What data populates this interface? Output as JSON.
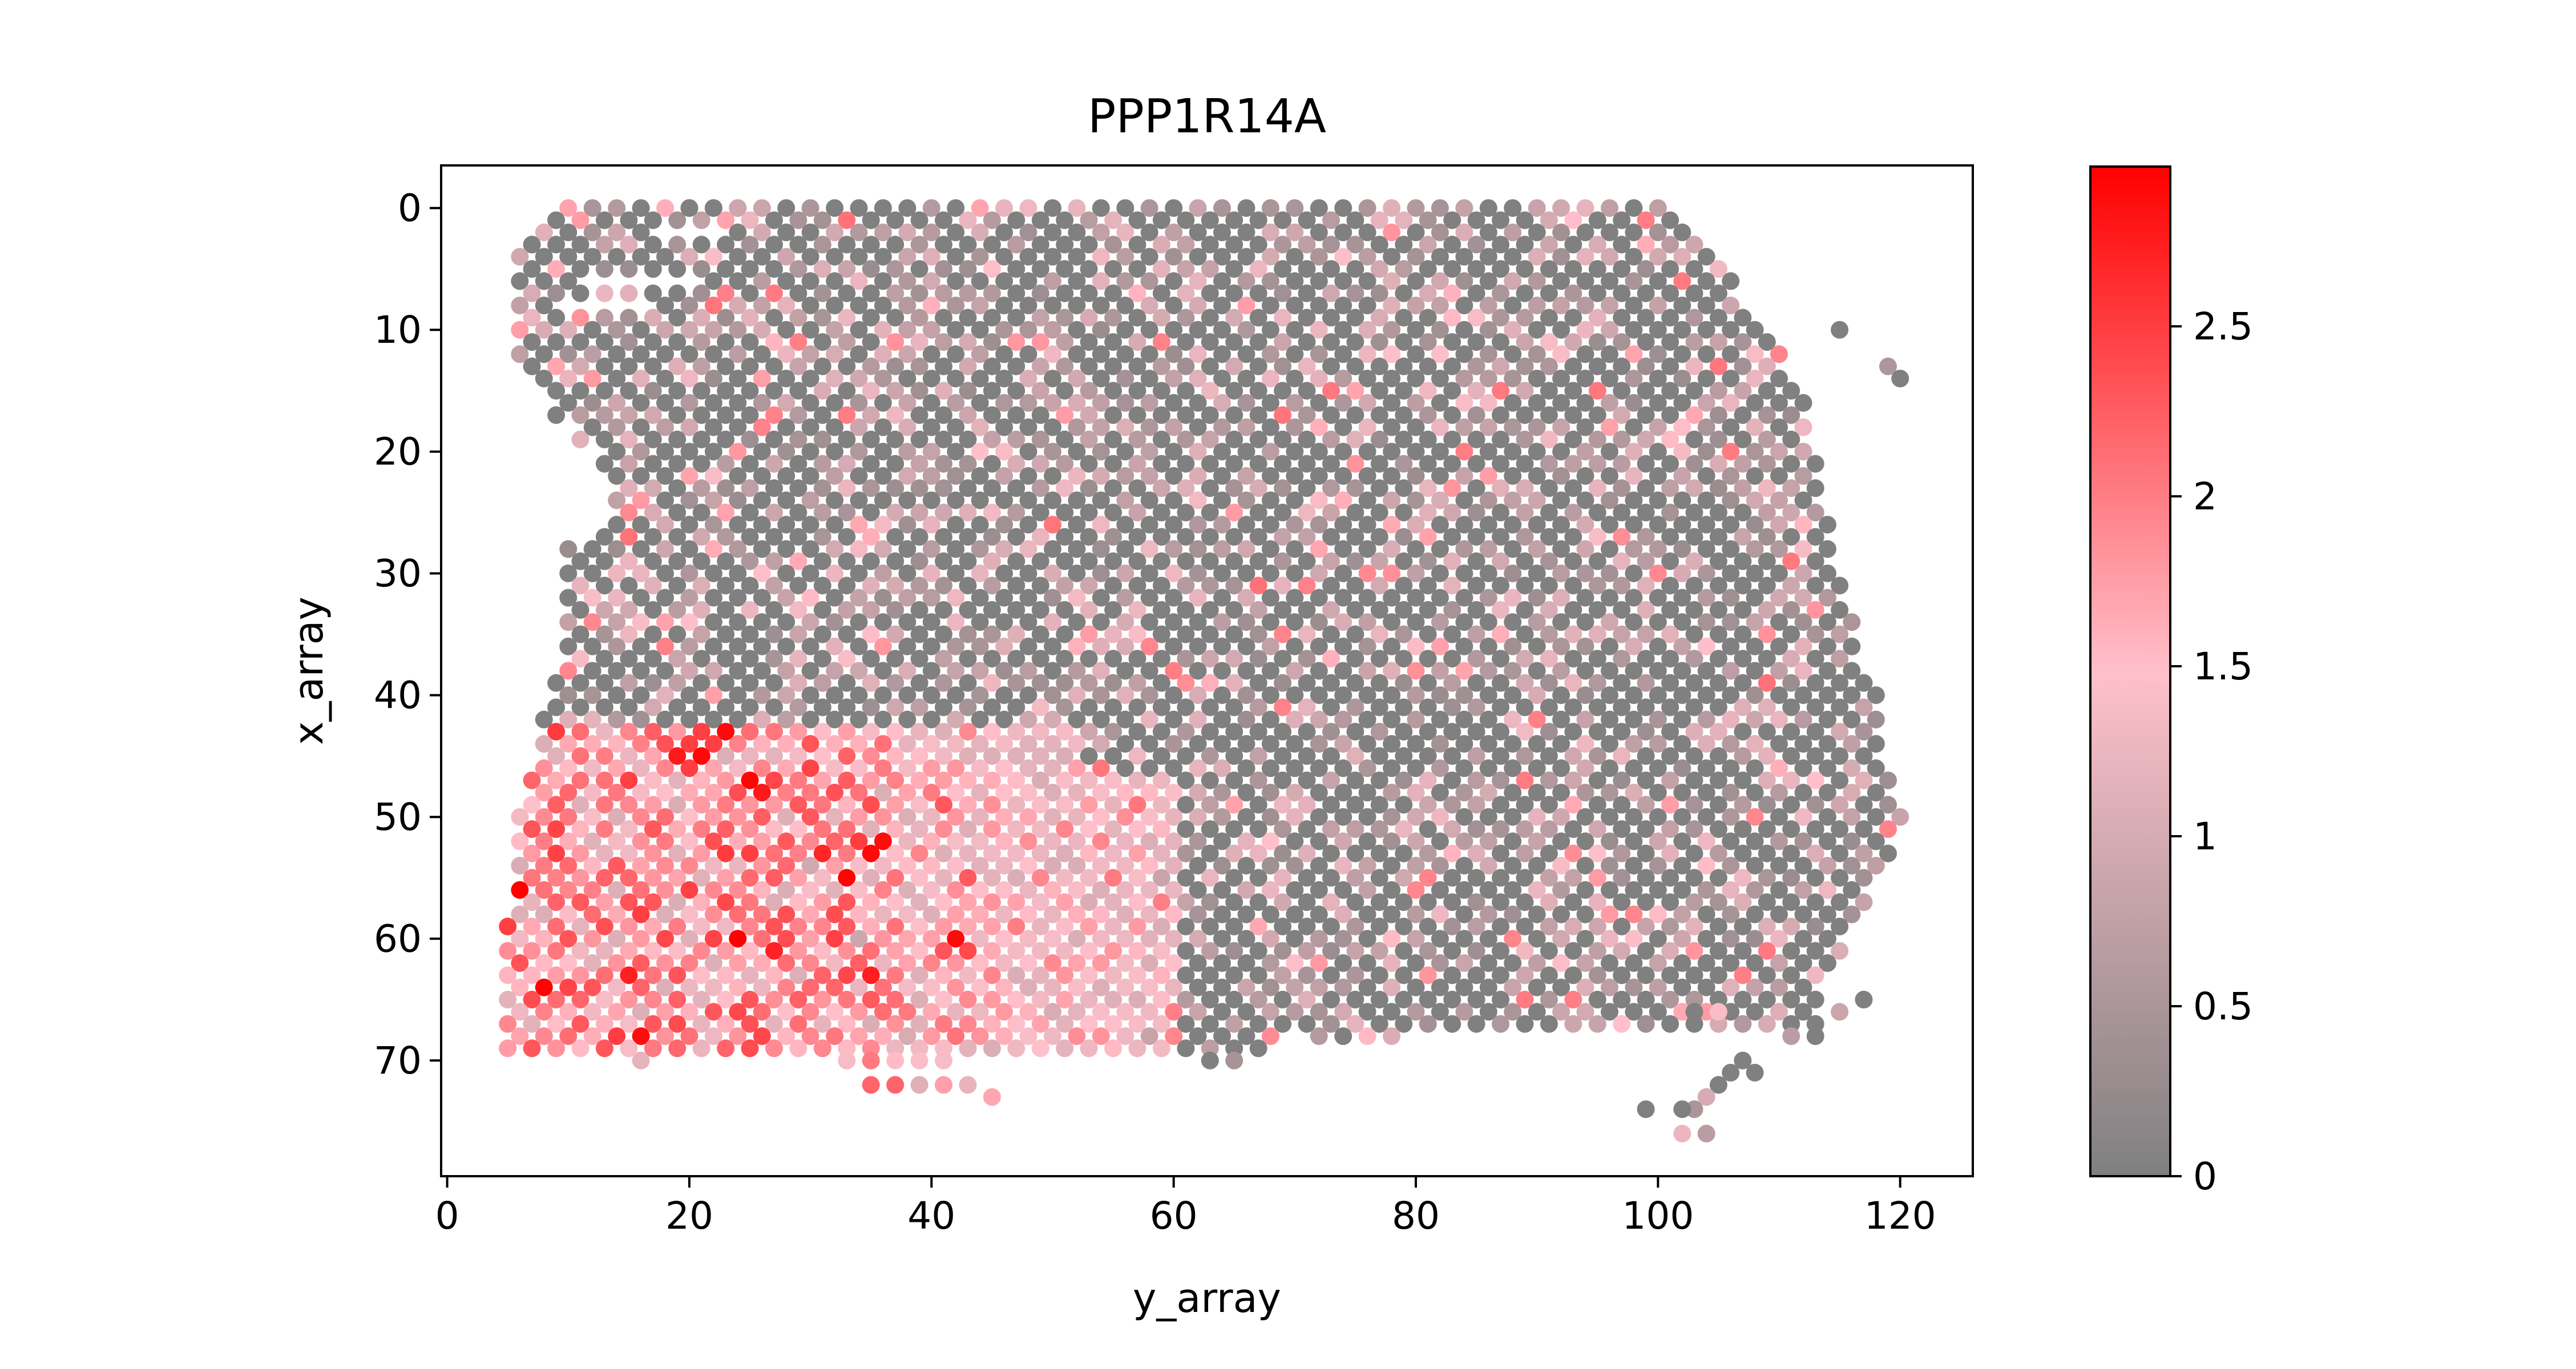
{
  "chart_data": {
    "type": "scatter",
    "title": "PPP1R14A",
    "xlabel": "y_array",
    "ylabel": "x_array",
    "xlim": [
      -0.5,
      126
    ],
    "ylim": [
      79.5,
      -3.5
    ],
    "y_inverted": true,
    "x_ticks": [
      "0",
      "20",
      "40",
      "60",
      "80",
      "100",
      "120"
    ],
    "y_ticks": [
      "0",
      "10",
      "20",
      "30",
      "40",
      "50",
      "60",
      "70"
    ],
    "grid": false,
    "legend": "none",
    "colorbar": {
      "range": [
        0,
        2.97
      ],
      "ticks": [
        "0",
        "0.5",
        "1",
        "1.5",
        "2",
        "2.5"
      ],
      "colors": [
        "#808080",
        "#ffc0cb",
        "#ff0000"
      ]
    },
    "tissue_outline": {
      "rows": [
        [
          0,
          8,
          101
        ],
        [
          2,
          7,
          103
        ],
        [
          4,
          6,
          105
        ],
        [
          6,
          6,
          106
        ],
        [
          8,
          6,
          107
        ],
        [
          10,
          6,
          109
        ],
        [
          12,
          6,
          110
        ],
        [
          14,
          8,
          111
        ],
        [
          16,
          9,
          112
        ],
        [
          18,
          11,
          112
        ],
        [
          20,
          13,
          113
        ],
        [
          22,
          14,
          113
        ],
        [
          24,
          14,
          113
        ],
        [
          26,
          13,
          114
        ],
        [
          28,
          10,
          114
        ],
        [
          30,
          10,
          115
        ],
        [
          32,
          10,
          115
        ],
        [
          34,
          10,
          116
        ],
        [
          36,
          10,
          116
        ],
        [
          38,
          9,
          117
        ],
        [
          40,
          9,
          118
        ],
        [
          42,
          8,
          118
        ],
        [
          44,
          8,
          118
        ],
        [
          46,
          7,
          119
        ],
        [
          48,
          7,
          119
        ],
        [
          50,
          6,
          120
        ],
        [
          52,
          6,
          119
        ],
        [
          54,
          6,
          118
        ],
        [
          56,
          6,
          117
        ],
        [
          58,
          5,
          116
        ],
        [
          60,
          5,
          115
        ],
        [
          62,
          5,
          114
        ],
        [
          64,
          5,
          113
        ],
        [
          66,
          5,
          113
        ],
        [
          68,
          5,
          68
        ],
        [
          70,
          15,
          17
        ]
      ],
      "holes": [
        [
          6,
          11,
          21
        ],
        [
          8,
          9,
          17
        ],
        [
          0,
          5,
          8
        ],
        [
          2,
          17,
          22
        ]
      ],
      "extra_spots": [
        [
          0,
          20
        ],
        [
          0,
          22
        ],
        [
          0,
          24
        ],
        [
          72,
          35
        ],
        [
          72,
          37
        ],
        [
          72,
          39
        ],
        [
          72,
          41
        ],
        [
          72,
          43
        ],
        [
          73,
          45
        ],
        [
          70,
          33
        ],
        [
          70,
          35
        ],
        [
          70,
          37
        ],
        [
          70,
          39
        ],
        [
          70,
          41
        ],
        [
          70,
          63
        ],
        [
          70,
          65
        ],
        [
          68,
          72
        ],
        [
          68,
          74
        ],
        [
          68,
          76
        ],
        [
          68,
          78
        ],
        [
          66,
          103
        ],
        [
          66,
          105
        ],
        [
          68,
          111
        ],
        [
          68,
          113
        ],
        [
          66,
          115
        ],
        [
          65,
          117
        ],
        [
          70,
          107
        ],
        [
          71,
          106
        ],
        [
          71,
          108
        ],
        [
          72,
          105
        ],
        [
          73,
          104
        ],
        [
          74,
          103
        ],
        [
          74,
          99
        ],
        [
          74,
          102
        ],
        [
          76,
          102
        ],
        [
          76,
          104
        ],
        [
          10,
          115
        ],
        [
          13,
          119
        ],
        [
          14,
          120
        ]
      ]
    },
    "high_region": {
      "x_range": [
        0,
        80
      ],
      "y_range": [
        0,
        80
      ],
      "peak_spots": [
        [
          43,
          23
        ],
        [
          52,
          36
        ],
        [
          53,
          35
        ],
        [
          68,
          16
        ],
        [
          55,
          33
        ],
        [
          47,
          25
        ],
        [
          60,
          42
        ],
        [
          65,
          24
        ]
      ]
    }
  }
}
